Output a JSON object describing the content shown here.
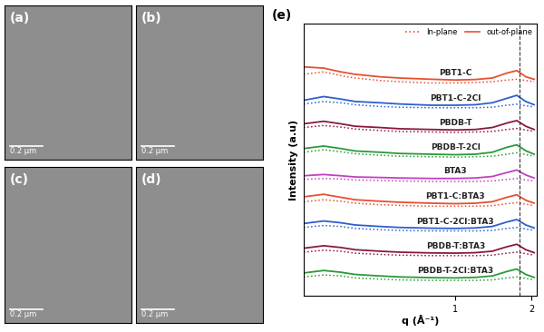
{
  "tem_panels": [
    {
      "label": "(a)",
      "scale_bar": "0.2 μm"
    },
    {
      "label": "(b)",
      "scale_bar": "0.2 μm"
    },
    {
      "label": "(c)",
      "scale_bar": "0.2 μm"
    },
    {
      "label": "(d)",
      "scale_bar": "0.2 μm"
    }
  ],
  "chart_data": {
    "type": "line",
    "panel_label": "(e)",
    "x_label": "q (Å⁻¹)",
    "y_label": "Intensity (a.u)",
    "log": "x",
    "xlim": [
      0.25,
      2.1
    ],
    "xticks": [
      1,
      2
    ],
    "ylim": [
      0,
      11
    ],
    "yticks": [],
    "tick_labels": "x",
    "legend": "upper right",
    "legend_entries": [
      {
        "name": "In-plane",
        "line_style": "dotted"
      },
      {
        "name": "out-of-plane",
        "line_style": "solid"
      }
    ],
    "reference_q": 1.8,
    "x": [
      0.25,
      0.3,
      0.35,
      0.4,
      0.5,
      0.6,
      0.8,
      1.0,
      1.2,
      1.4,
      1.6,
      1.75,
      1.9,
      2.05
    ],
    "series": [
      {
        "name": "PBT1-C",
        "color": "#e8502f",
        "out_of_plane": [
          9.25,
          9.2,
          9.05,
          8.95,
          8.85,
          8.8,
          8.75,
          8.72,
          8.74,
          8.8,
          9.0,
          9.1,
          8.85,
          8.75
        ],
        "in_plane": [
          8.95,
          9.05,
          8.9,
          8.8,
          8.7,
          8.65,
          8.6,
          8.6,
          8.62,
          8.65,
          8.72,
          8.75,
          8.7,
          8.65
        ]
      },
      {
        "name": "PBT1-C-2Cl",
        "color": "#2e5fcf",
        "out_of_plane": [
          7.9,
          8.05,
          7.95,
          7.85,
          7.8,
          7.75,
          7.7,
          7.7,
          7.72,
          7.8,
          7.98,
          8.1,
          7.85,
          7.72
        ],
        "in_plane": [
          7.75,
          7.85,
          7.8,
          7.72,
          7.65,
          7.62,
          7.6,
          7.6,
          7.6,
          7.62,
          7.7,
          7.74,
          7.68,
          7.63
        ]
      },
      {
        "name": "PBDB-T",
        "color": "#8b1a3a",
        "out_of_plane": [
          6.95,
          7.05,
          6.95,
          6.85,
          6.8,
          6.75,
          6.72,
          6.7,
          6.72,
          6.8,
          6.98,
          7.08,
          6.85,
          6.72
        ],
        "in_plane": [
          6.8,
          6.88,
          6.82,
          6.74,
          6.68,
          6.64,
          6.62,
          6.6,
          6.62,
          6.64,
          6.72,
          6.76,
          6.7,
          6.64
        ]
      },
      {
        "name": "PBDB-T-2Cl",
        "color": "#2a9a3a",
        "out_of_plane": [
          5.95,
          6.05,
          5.95,
          5.85,
          5.8,
          5.75,
          5.72,
          5.7,
          5.72,
          5.8,
          6.0,
          6.1,
          5.86,
          5.72
        ],
        "in_plane": [
          5.8,
          5.9,
          5.82,
          5.74,
          5.68,
          5.64,
          5.62,
          5.6,
          5.62,
          5.64,
          5.72,
          5.78,
          5.7,
          5.64
        ]
      },
      {
        "name": "BTA3",
        "color": "#c040c0",
        "out_of_plane": [
          4.85,
          4.9,
          4.85,
          4.8,
          4.78,
          4.76,
          4.74,
          4.74,
          4.76,
          4.82,
          4.98,
          5.08,
          4.88,
          4.76
        ],
        "in_plane": [
          4.7,
          4.74,
          4.72,
          4.68,
          4.66,
          4.64,
          4.62,
          4.62,
          4.62,
          4.64,
          4.7,
          4.74,
          4.68,
          4.64
        ]
      },
      {
        "name": "PBT1-C:BTA3",
        "color": "#e8502f",
        "out_of_plane": [
          4.0,
          4.1,
          3.98,
          3.88,
          3.82,
          3.78,
          3.74,
          3.72,
          3.74,
          3.8,
          3.98,
          4.08,
          3.86,
          3.74
        ],
        "in_plane": [
          3.8,
          3.88,
          3.82,
          3.74,
          3.68,
          3.65,
          3.62,
          3.62,
          3.62,
          3.64,
          3.72,
          3.76,
          3.7,
          3.64
        ]
      },
      {
        "name": "PBT1-C-2Cl:BTA3",
        "color": "#2e5fcf",
        "out_of_plane": [
          2.92,
          3.02,
          2.95,
          2.86,
          2.8,
          2.76,
          2.73,
          2.72,
          2.74,
          2.8,
          2.98,
          3.08,
          2.86,
          2.74
        ],
        "in_plane": [
          2.76,
          2.84,
          2.8,
          2.72,
          2.67,
          2.64,
          2.62,
          2.62,
          2.62,
          2.64,
          2.72,
          2.76,
          2.7,
          2.64
        ]
      },
      {
        "name": "PBDB-T:BTA3",
        "color": "#8b1a3a",
        "out_of_plane": [
          1.92,
          2.02,
          1.95,
          1.86,
          1.8,
          1.76,
          1.73,
          1.72,
          1.74,
          1.8,
          1.98,
          2.08,
          1.86,
          1.74
        ],
        "in_plane": [
          1.76,
          1.84,
          1.8,
          1.72,
          1.67,
          1.64,
          1.62,
          1.62,
          1.62,
          1.64,
          1.72,
          1.76,
          1.7,
          1.64
        ]
      },
      {
        "name": "PBDB-T-2Cl:BTA3",
        "color": "#2a9a3a",
        "out_of_plane": [
          0.92,
          1.02,
          0.95,
          0.86,
          0.8,
          0.76,
          0.73,
          0.72,
          0.74,
          0.8,
          0.98,
          1.08,
          0.86,
          0.74
        ],
        "in_plane": [
          0.76,
          0.84,
          0.8,
          0.72,
          0.67,
          0.64,
          0.62,
          0.62,
          0.62,
          0.64,
          0.72,
          0.76,
          0.7,
          0.64
        ]
      }
    ]
  }
}
